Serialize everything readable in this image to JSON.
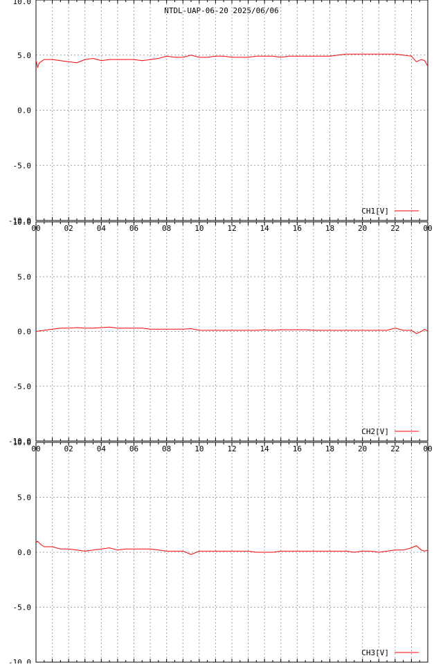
{
  "title": "NTDL-UAP-06-20 2025/06/06",
  "colors": {
    "series": "#ff0000",
    "grid": "#a0a0a0",
    "axis": "#000000",
    "background": "#ffffff"
  },
  "chart_data": [
    {
      "type": "line",
      "title": "NTDL-UAP-06-20 2025/06/06",
      "series_name": "CH1[V]",
      "ylim": [
        -10,
        10
      ],
      "xlim": [
        0,
        24
      ],
      "y_ticks": [
        "10.0",
        "5.0",
        "0.0",
        "-5.0",
        "-10.0"
      ],
      "x_ticks": [
        "00",
        "02",
        "04",
        "06",
        "08",
        "10",
        "12",
        "14",
        "16",
        "18",
        "20",
        "22",
        "00"
      ],
      "grid": true,
      "legend": "bottom-right",
      "x": [
        0,
        0.1,
        0.2,
        0.5,
        1,
        1.5,
        2,
        2.5,
        3,
        3.5,
        4,
        4.5,
        5,
        5.5,
        6,
        6.5,
        7,
        7.5,
        8,
        8.5,
        9,
        9.5,
        10,
        10.5,
        11,
        11.5,
        12,
        12.5,
        13,
        13.5,
        14,
        14.5,
        15,
        15.5,
        16,
        16.5,
        17,
        17.5,
        18,
        18.5,
        19,
        19.5,
        20,
        20.5,
        21,
        21.5,
        22,
        22.5,
        23,
        23.3,
        23.6,
        23.8,
        24
      ],
      "y": [
        4.5,
        3.9,
        4.3,
        4.6,
        4.6,
        4.5,
        4.4,
        4.3,
        4.6,
        4.7,
        4.5,
        4.6,
        4.6,
        4.6,
        4.6,
        4.5,
        4.6,
        4.7,
        4.9,
        4.8,
        4.8,
        5.0,
        4.8,
        4.8,
        4.9,
        4.9,
        4.8,
        4.8,
        4.8,
        4.9,
        4.9,
        4.9,
        4.8,
        4.9,
        4.9,
        4.9,
        4.9,
        4.9,
        4.9,
        5.0,
        5.1,
        5.1,
        5.1,
        5.1,
        5.1,
        5.1,
        5.1,
        5.0,
        4.9,
        4.4,
        4.6,
        4.5,
        4.0
      ]
    },
    {
      "type": "line",
      "series_name": "CH2[V]",
      "ylim": [
        -10,
        10
      ],
      "xlim": [
        0,
        24
      ],
      "y_ticks": [
        "10.0",
        "5.0",
        "0.0",
        "-5.0",
        "-10.0"
      ],
      "x_ticks": [
        "00",
        "02",
        "04",
        "06",
        "08",
        "10",
        "12",
        "14",
        "16",
        "18",
        "20",
        "22",
        "00"
      ],
      "grid": true,
      "legend": "bottom-right",
      "x": [
        0,
        0.5,
        1,
        1.5,
        2,
        2.5,
        3,
        3.5,
        4,
        4.5,
        5,
        5.5,
        6,
        6.5,
        7,
        7.5,
        8,
        8.5,
        9,
        9.5,
        10,
        10.5,
        11,
        11.5,
        12,
        12.5,
        13,
        13.5,
        14,
        14.5,
        15,
        15.5,
        16,
        16.5,
        17,
        17.5,
        18,
        18.5,
        19,
        19.5,
        20,
        20.5,
        21,
        21.5,
        22,
        22.5,
        23,
        23.3,
        23.6,
        23.8,
        24
      ],
      "y": [
        0.0,
        0.1,
        0.2,
        0.3,
        0.3,
        0.35,
        0.3,
        0.3,
        0.35,
        0.4,
        0.3,
        0.3,
        0.3,
        0.3,
        0.2,
        0.2,
        0.2,
        0.2,
        0.2,
        0.25,
        0.1,
        0.1,
        0.1,
        0.1,
        0.1,
        0.1,
        0.1,
        0.1,
        0.15,
        0.1,
        0.15,
        0.15,
        0.15,
        0.15,
        0.1,
        0.1,
        0.1,
        0.1,
        0.1,
        0.1,
        0.1,
        0.1,
        0.1,
        0.1,
        0.3,
        0.1,
        0.1,
        -0.2,
        0.0,
        0.2,
        0.0
      ]
    },
    {
      "type": "line",
      "series_name": "CH3[V]",
      "ylim": [
        -10,
        10
      ],
      "xlim": [
        0,
        24
      ],
      "y_ticks": [
        "10.0",
        "5.0",
        "0.0",
        "-5.0",
        "-10.0"
      ],
      "x_ticks": [],
      "grid": true,
      "legend": "bottom-right",
      "x": [
        0,
        0.1,
        0.3,
        0.5,
        1,
        1.5,
        2,
        2.5,
        3,
        3.5,
        4,
        4.5,
        5,
        5.5,
        6,
        6.5,
        7,
        7.5,
        8,
        8.5,
        9,
        9.5,
        10,
        10.5,
        11,
        11.5,
        12,
        12.5,
        13,
        13.5,
        14,
        14.5,
        15,
        15.5,
        16,
        16.5,
        17,
        17.5,
        18,
        18.5,
        19,
        19.5,
        20,
        20.5,
        21,
        21.5,
        22,
        22.5,
        23,
        23.3,
        23.6,
        23.8,
        24
      ],
      "y": [
        0.9,
        1.0,
        0.7,
        0.5,
        0.5,
        0.3,
        0.3,
        0.2,
        0.1,
        0.2,
        0.3,
        0.4,
        0.2,
        0.3,
        0.3,
        0.3,
        0.3,
        0.2,
        0.1,
        0.1,
        0.1,
        -0.2,
        0.1,
        0.1,
        0.1,
        0.1,
        0.1,
        0.1,
        0.1,
        0.0,
        0.0,
        0.0,
        0.1,
        0.1,
        0.1,
        0.1,
        0.1,
        0.1,
        0.1,
        0.1,
        0.1,
        0.0,
        0.1,
        0.1,
        0.0,
        0.1,
        0.2,
        0.2,
        0.4,
        0.6,
        0.2,
        0.1,
        0.2
      ]
    }
  ]
}
